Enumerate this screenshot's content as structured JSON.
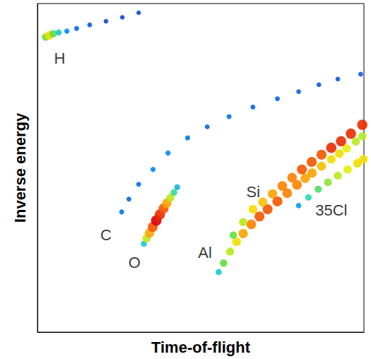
{
  "chart_data": {
    "type": "scatter",
    "x_label": "Time-of-flight",
    "y_label": "Inverse energy",
    "xlim": [
      0,
      100
    ],
    "ylim": [
      0,
      100
    ],
    "tick_labels": false,
    "grid": false,
    "density_range": [
      0,
      1
    ],
    "series": [
      {
        "x": [
          2.5,
          3.6,
          4.8,
          6.5,
          9,
          12,
          16,
          21,
          26,
          31
        ],
        "y": [
          89.8,
          90.3,
          90.8,
          91.2,
          91.6,
          92.4,
          93.5,
          94.6,
          95.8,
          97.2
        ],
        "density": [
          0.5,
          0.7,
          0.5,
          0.3,
          0.15,
          0.1,
          0.08,
          0.05,
          0.05,
          0.05
        ]
      },
      {
        "x": [
          25.8,
          28,
          31,
          35.4,
          40,
          46,
          52,
          58.7,
          66,
          73.5,
          80,
          86.2,
          92,
          99
        ],
        "y": [
          36.6,
          40.5,
          45,
          49.5,
          54.5,
          59.1,
          62.5,
          65.6,
          68.5,
          71,
          73.2,
          75.3,
          77,
          78.5
        ],
        "density": [
          0.12,
          0.1,
          0.12,
          0.15,
          0.15,
          0.12,
          0.1,
          0.12,
          0.1,
          0.1,
          0.1,
          0.08,
          0.08,
          0.08
        ]
      },
      {
        "x": [
          32.6,
          33.4,
          34.3,
          35.3,
          36.4,
          37.5,
          38.6,
          39.6,
          40.7,
          41.8,
          42.8
        ],
        "y": [
          26.9,
          28.5,
          30.1,
          32,
          34,
          35.8,
          37.6,
          39.2,
          40.9,
          42.5,
          44.1
        ],
        "density": [
          0.3,
          0.6,
          0.8,
          0.9,
          1.0,
          0.95,
          0.9,
          0.8,
          0.6,
          0.4,
          0.25
        ]
      },
      {
        "x": [
          80,
          83,
          86,
          89,
          92,
          95,
          98,
          99.8
        ],
        "y": [
          38.5,
          41,
          43.5,
          45.6,
          47.6,
          49.5,
          51.4,
          52.6
        ],
        "density": [
          0.2,
          0.35,
          0.45,
          0.55,
          0.6,
          0.65,
          0.7,
          0.7
        ]
      },
      {
        "x": [
          55.5,
          57,
          59,
          61,
          63,
          65.5,
          68,
          70.5,
          73.5,
          76.5,
          79.5,
          82,
          84.1,
          87,
          90,
          92.5,
          94.7,
          97.5,
          99.5
        ],
        "y": [
          18.3,
          21,
          24.5,
          27.5,
          30,
          32.8,
          35.2,
          37.4,
          39.8,
          42.3,
          44.8,
          46.8,
          48.4,
          50.5,
          52.6,
          54.3,
          55.9,
          58,
          59.6
        ],
        "density": [
          0.3,
          0.5,
          0.6,
          0.7,
          0.8,
          0.85,
          0.9,
          0.9,
          0.9,
          0.85,
          0.85,
          0.8,
          0.8,
          0.75,
          0.7,
          0.7,
          0.65,
          0.6,
          0.6
        ]
      },
      {
        "x": [
          60,
          63,
          66,
          69,
          72,
          75,
          78,
          81,
          84,
          87,
          90,
          93,
          96,
          99.5
        ],
        "y": [
          29.5,
          33.5,
          37.4,
          39.6,
          42.1,
          44.5,
          47,
          49.5,
          51.8,
          54,
          56.1,
          58.1,
          60.4,
          63.1
        ],
        "density": [
          0.5,
          0.6,
          0.7,
          0.75,
          0.8,
          0.85,
          0.85,
          0.9,
          0.9,
          0.9,
          0.95,
          0.95,
          0.95,
          0.95
        ]
      }
    ],
    "annotations": [
      {
        "text": "H",
        "x": 6.8,
        "y": 83.4
      },
      {
        "text": "C",
        "x": 21,
        "y": 29.5
      },
      {
        "text": "O",
        "x": 29.7,
        "y": 21.1
      },
      {
        "text": "Al",
        "x": 51.3,
        "y": 24.1
      },
      {
        "text": "Si",
        "x": 66.1,
        "y": 42.6
      },
      {
        "text": "35Cl",
        "x": 90,
        "y": 37
      }
    ]
  }
}
